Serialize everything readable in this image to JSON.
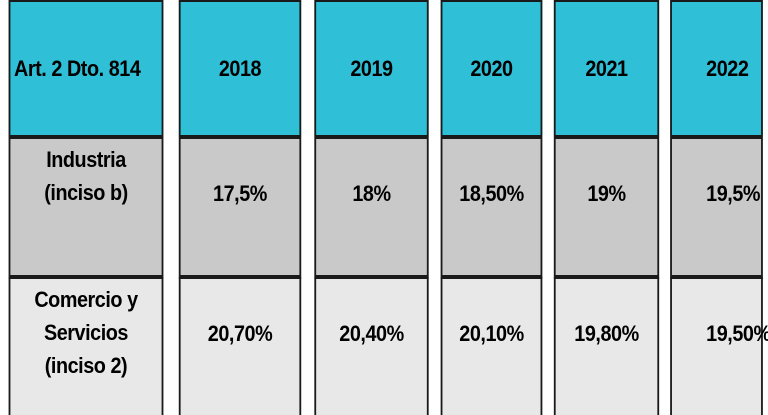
{
  "table": {
    "header": [
      "Art. 2 Dto. 814",
      "2018",
      "2019",
      "2020",
      "2021",
      "2022"
    ],
    "rows": [
      {
        "label": "Industria\n(inciso b)",
        "values": [
          "17,5%",
          "18%",
          "18,50%",
          "19%",
          "19,5%"
        ]
      },
      {
        "label": "Comercio y\nServicios\n(inciso 2)",
        "values": [
          "20,70%",
          "20,40%",
          "20,10%",
          "19,80%",
          "19,50%"
        ]
      }
    ]
  },
  "colors": {
    "header_bg": "#2fbfd6",
    "row1_bg": "#c9c9c9",
    "row2_bg": "#e8e8e8",
    "border": "#1a1a1a"
  }
}
